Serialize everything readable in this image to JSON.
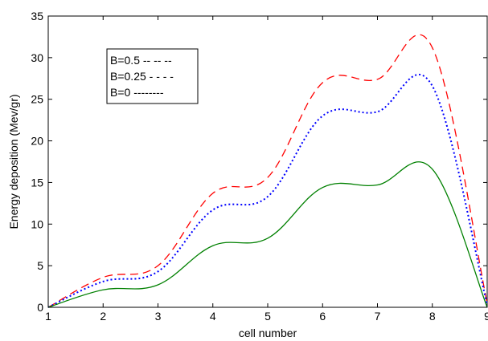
{
  "chart_data": {
    "type": "line",
    "title": "",
    "xlabel": "cell number",
    "ylabel": "Energy deposition (Mev/gr)",
    "xlim": [
      1,
      9
    ],
    "ylim": [
      0,
      35
    ],
    "xticks": [
      "1",
      "2",
      "3",
      "4",
      "5",
      "6",
      "7",
      "8",
      "9"
    ],
    "yticks": [
      "0",
      "5",
      "10",
      "15",
      "20",
      "25",
      "30",
      "35"
    ],
    "grid": false,
    "legend_position": "top-left",
    "series": [
      {
        "name": "B=0.5 -- -- --",
        "color": "#ff0000",
        "style": "dashed",
        "x": [
          1,
          2,
          3,
          4,
          5,
          6,
          7,
          8,
          9
        ],
        "y": [
          0,
          3.6,
          5.0,
          13.7,
          15.6,
          27.0,
          27.4,
          31.2,
          0.5
        ]
      },
      {
        "name": "B=0.25 - - - -",
        "color": "#0000ff",
        "style": "dotted",
        "x": [
          1,
          2,
          3,
          4,
          5,
          6,
          7,
          8,
          9
        ],
        "y": [
          0,
          3.1,
          4.3,
          11.7,
          13.3,
          23.0,
          23.5,
          26.6,
          0.3
        ]
      },
      {
        "name": "B=0  --------",
        "color": "#008000",
        "style": "solid",
        "x": [
          1,
          2,
          3,
          4,
          5,
          6,
          7,
          8,
          9
        ],
        "y": [
          0,
          2.1,
          2.7,
          7.4,
          8.3,
          14.4,
          14.7,
          16.6,
          0
        ]
      }
    ]
  }
}
